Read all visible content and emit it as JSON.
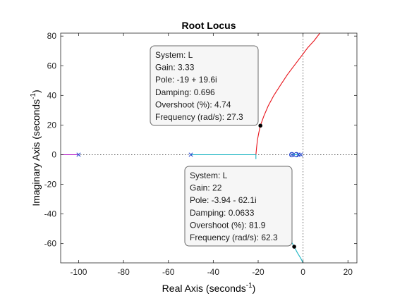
{
  "chart_data": {
    "type": "line",
    "title": "Root Locus",
    "xlabel": {
      "text": "Real Axis (seconds",
      "sup": "-1",
      "suffix": ")"
    },
    "ylabel": {
      "text": "Imaginary Axis (seconds",
      "sup": "-1",
      "suffix": ")"
    },
    "xlim": [
      -108,
      24
    ],
    "ylim": [
      -73,
      82
    ],
    "xticks": [
      -100,
      -80,
      -60,
      -40,
      -20,
      0,
      20
    ],
    "yticks": [
      -60,
      -40,
      -20,
      0,
      20,
      40,
      60,
      80
    ],
    "grid": false,
    "colors": {
      "red": "#e8131a",
      "cyan": "#1fb6c4",
      "magenta": "#b51dc8",
      "blue": "#2244cc",
      "ref_line": "#555555",
      "marker": "#000000"
    },
    "series": [
      {
        "color": "red",
        "points": [
          [
            -21,
            0
          ],
          [
            -20.7,
            5
          ],
          [
            -20.3,
            10
          ],
          [
            -19.7,
            15
          ],
          [
            -19,
            19.6
          ],
          [
            -17.5,
            26
          ],
          [
            -15.5,
            33
          ],
          [
            -13,
            40
          ],
          [
            -10,
            47
          ],
          [
            -7,
            54
          ],
          [
            -4,
            60
          ],
          [
            -1,
            66
          ],
          [
            2,
            72
          ],
          [
            5,
            77
          ],
          [
            7.5,
            82
          ]
        ]
      },
      {
        "color": "cyan",
        "points": [
          [
            -50,
            0
          ],
          [
            -21,
            0
          ]
        ]
      },
      {
        "color": "cyan",
        "points": [
          [
            -21,
            0
          ],
          [
            -21,
            -3
          ]
        ]
      },
      {
        "color": "cyan",
        "points": [
          [
            -5,
            0
          ],
          [
            -2,
            0
          ]
        ]
      },
      {
        "color": "cyan",
        "points": [
          [
            -5.8,
            -57
          ],
          [
            -3.94,
            -62.1
          ],
          [
            -2.6,
            -66
          ],
          [
            -1,
            -70
          ],
          [
            0,
            -73
          ]
        ]
      },
      {
        "color": "magenta",
        "points": [
          [
            -108,
            0
          ],
          [
            -100,
            0
          ]
        ]
      }
    ],
    "poles": [
      [
        -100,
        0
      ],
      [
        -50,
        0
      ],
      [
        -5,
        0
      ],
      [
        -2,
        0
      ],
      [
        -1,
        0
      ]
    ],
    "zeros": [
      [
        -5,
        0
      ],
      [
        -3,
        0
      ]
    ],
    "selected_points": [
      [
        -19,
        19.6
      ],
      [
        -3.94,
        -62.1
      ]
    ],
    "datatips": [
      {
        "anchor": [
          -19,
          19.6
        ],
        "lines": [
          "System: L",
          "Gain: 3.33",
          "Pole: -19 + 19.6i",
          "Damping: 0.696",
          "Overshoot (%): 4.74",
          "Frequency (rad/s): 27.3"
        ]
      },
      {
        "anchor": [
          -3.94,
          -62.1
        ],
        "lines": [
          "System: L",
          "Gain: 22",
          "Pole: -3.94 - 62.1i",
          "Damping: 0.0633",
          "Overshoot (%): 81.9",
          "Frequency (rad/s): 62.3"
        ]
      }
    ]
  }
}
